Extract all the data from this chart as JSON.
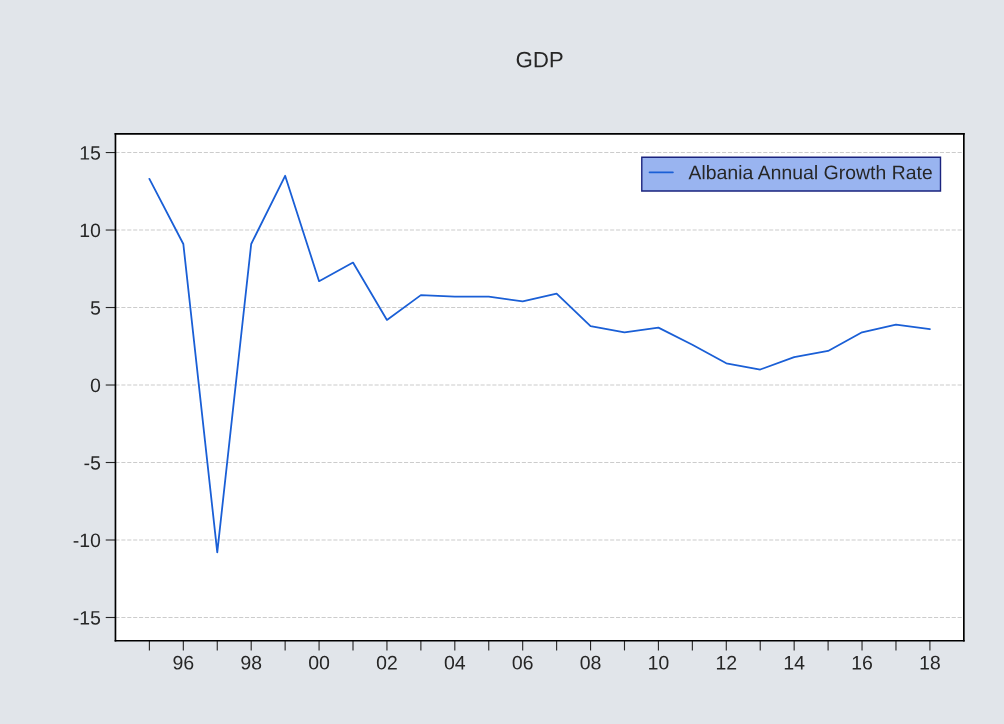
{
  "chart_data": {
    "type": "line",
    "title": "GDP",
    "x": [
      1995,
      1996,
      1997,
      1998,
      1999,
      2000,
      2001,
      2002,
      2003,
      2004,
      2005,
      2006,
      2007,
      2008,
      2009,
      2010,
      2011,
      2012,
      2013,
      2014,
      2015,
      2016,
      2017,
      2018
    ],
    "series": [
      {
        "name": "Albania Annual Growth Rate",
        "color": "#1a5fd6",
        "values": [
          13.3,
          9.1,
          -10.8,
          9.1,
          13.5,
          6.7,
          7.9,
          4.2,
          5.8,
          5.7,
          5.7,
          5.4,
          5.9,
          3.8,
          3.4,
          3.7,
          2.6,
          1.4,
          1.0,
          1.8,
          2.2,
          3.4,
          3.9,
          3.6
        ]
      }
    ],
    "xlim": [
      1994,
      2019
    ],
    "ylim": [
      -16.5,
      16.2
    ],
    "xticks": [
      {
        "value": 1995,
        "label": null
      },
      {
        "value": 1996,
        "label": "96"
      },
      {
        "value": 1997,
        "label": null
      },
      {
        "value": 1998,
        "label": "98"
      },
      {
        "value": 1999,
        "label": null
      },
      {
        "value": 2000,
        "label": "00"
      },
      {
        "value": 2001,
        "label": null
      },
      {
        "value": 2002,
        "label": "02"
      },
      {
        "value": 2003,
        "label": null
      },
      {
        "value": 2004,
        "label": "04"
      },
      {
        "value": 2005,
        "label": null
      },
      {
        "value": 2006,
        "label": "06"
      },
      {
        "value": 2007,
        "label": null
      },
      {
        "value": 2008,
        "label": "08"
      },
      {
        "value": 2009,
        "label": null
      },
      {
        "value": 2010,
        "label": "10"
      },
      {
        "value": 2011,
        "label": null
      },
      {
        "value": 2012,
        "label": "12"
      },
      {
        "value": 2013,
        "label": null
      },
      {
        "value": 2014,
        "label": "14"
      },
      {
        "value": 2015,
        "label": null
      },
      {
        "value": 2016,
        "label": "16"
      },
      {
        "value": 2017,
        "label": null
      },
      {
        "value": 2018,
        "label": "18"
      }
    ],
    "yticks": [
      -15,
      -10,
      -5,
      0,
      5,
      10,
      15
    ],
    "grid": "y",
    "legend": "top right",
    "line_style": "solid",
    "marker": "none"
  }
}
